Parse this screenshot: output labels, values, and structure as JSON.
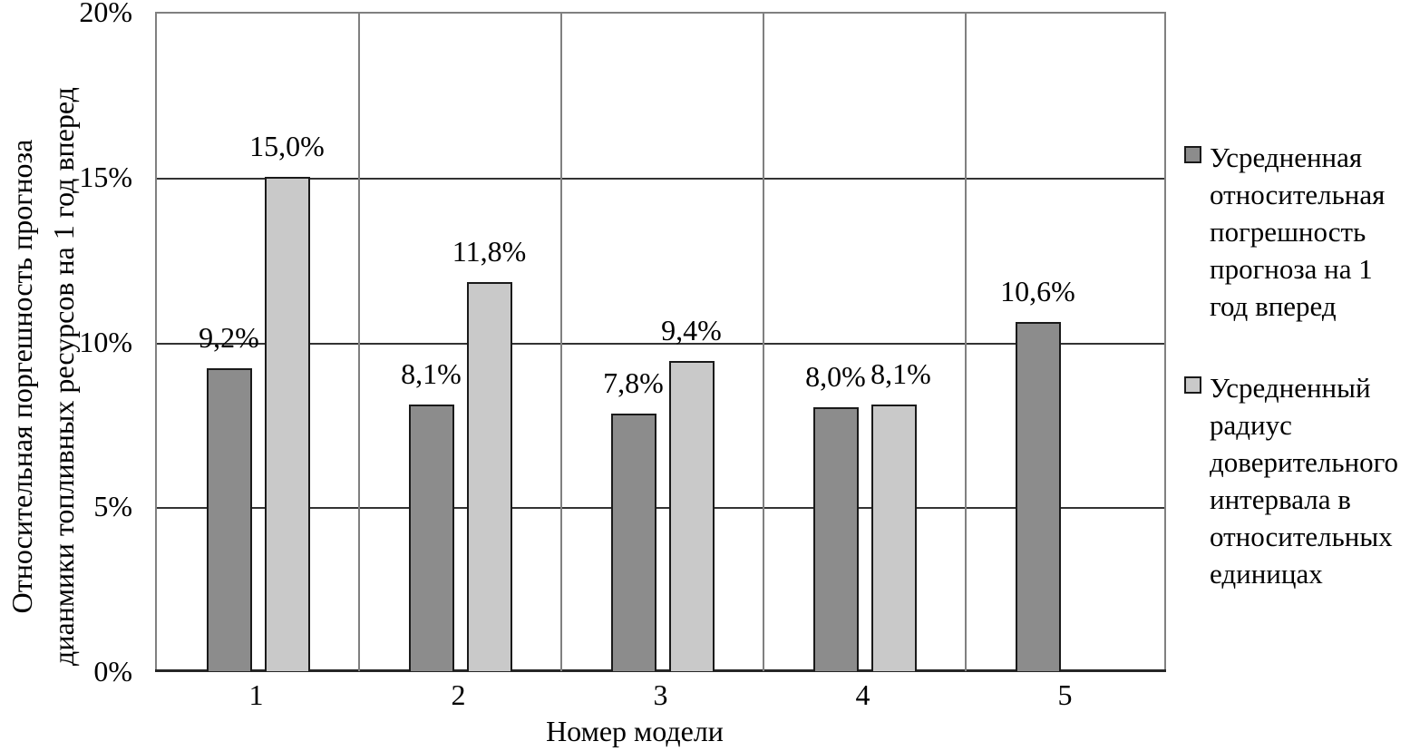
{
  "chart_data": {
    "type": "bar",
    "categories": [
      "1",
      "2",
      "3",
      "4",
      "5"
    ],
    "series": [
      {
        "name": "Усредненная относительная погрешность прогноза на 1 год вперед",
        "color": "#8C8C8C",
        "values": [
          9.2,
          8.1,
          7.8,
          8.0,
          10.6
        ],
        "labels": [
          "9,2%",
          "8,1%",
          "7,8%",
          "8,0%",
          "10,6%"
        ]
      },
      {
        "name": "Усредненный радиус доверительного интервала в относительных единицах",
        "color": "#C9C9C9",
        "values": [
          15.0,
          11.8,
          9.4,
          8.1,
          null
        ],
        "labels": [
          "15,0%",
          "11,8%",
          "9,4%",
          "8,1%",
          null
        ]
      }
    ],
    "xlabel": "Номер модели",
    "ylabel_lines": [
      "Относительная поргешность прогноза",
      "дианмики топливных ресурсов на 1 год вперед"
    ],
    "ylim": [
      0,
      20
    ],
    "ytick_values": [
      0,
      5,
      10,
      15,
      20
    ],
    "ytick_labels": [
      "0%",
      "5%",
      "10%",
      "15%",
      "20%"
    ],
    "grid": true,
    "legend_position": "right",
    "legend": {
      "items": [
        {
          "color": "#8C8C8C",
          "lines": [
            "Усредненная",
            "относительная",
            "погрешность",
            "прогноза на 1",
            "год вперед"
          ]
        },
        {
          "color": "#C9C9C9",
          "lines": [
            "Усредненный",
            "радиус",
            "доверительного",
            "интервала в",
            "относительных",
            "единицах"
          ]
        }
      ]
    }
  }
}
